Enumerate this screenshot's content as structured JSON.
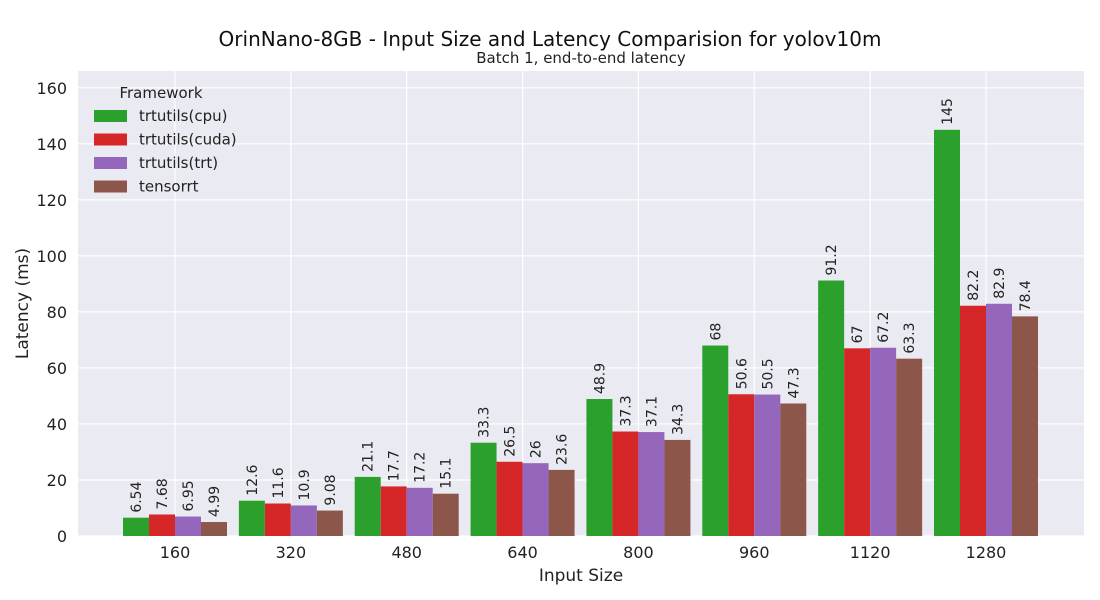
{
  "chart_data": {
    "type": "bar",
    "title": "OrinNano-8GB - Input Size and Latency Comparision for yolov10m",
    "subtitle": "Batch 1, end-to-end latency",
    "xlabel": "Input Size",
    "ylabel": "Latency (ms)",
    "ylim": [
      0,
      166
    ],
    "yticks": [
      0,
      20,
      40,
      60,
      80,
      100,
      120,
      140,
      160
    ],
    "grid": true,
    "legend": {
      "title": "Framework",
      "placement": "top-left"
    },
    "categories": [
      "160",
      "320",
      "480",
      "640",
      "800",
      "960",
      "1120",
      "1280"
    ],
    "series": [
      {
        "name": "trtutils(cpu)",
        "color": "#2ca02c",
        "values": [
          6.54,
          12.6,
          21.1,
          33.3,
          48.9,
          68,
          91.2,
          145
        ],
        "labels": [
          "6.54",
          "12.6",
          "21.1",
          "33.3",
          "48.9",
          "68",
          "91.2",
          "145"
        ]
      },
      {
        "name": "trtutils(cuda)",
        "color": "#d62728",
        "values": [
          7.68,
          11.6,
          17.7,
          26.5,
          37.3,
          50.6,
          67,
          82.2
        ],
        "labels": [
          "7.68",
          "11.6",
          "17.7",
          "26.5",
          "37.3",
          "50.6",
          "67",
          "82.2"
        ]
      },
      {
        "name": "trtutils(trt)",
        "color": "#9467bd",
        "values": [
          6.95,
          10.9,
          17.2,
          26,
          37.1,
          50.5,
          67.2,
          82.9
        ],
        "labels": [
          "6.95",
          "10.9",
          "17.2",
          "26",
          "37.1",
          "50.5",
          "67.2",
          "82.9"
        ]
      },
      {
        "name": "tensorrt",
        "color": "#8c564b",
        "values": [
          4.99,
          9.08,
          15.1,
          23.6,
          34.3,
          47.3,
          63.3,
          78.4
        ],
        "labels": [
          "4.99",
          "9.08",
          "15.1",
          "23.6",
          "34.3",
          "47.3",
          "63.3",
          "78.4"
        ]
      }
    ]
  }
}
